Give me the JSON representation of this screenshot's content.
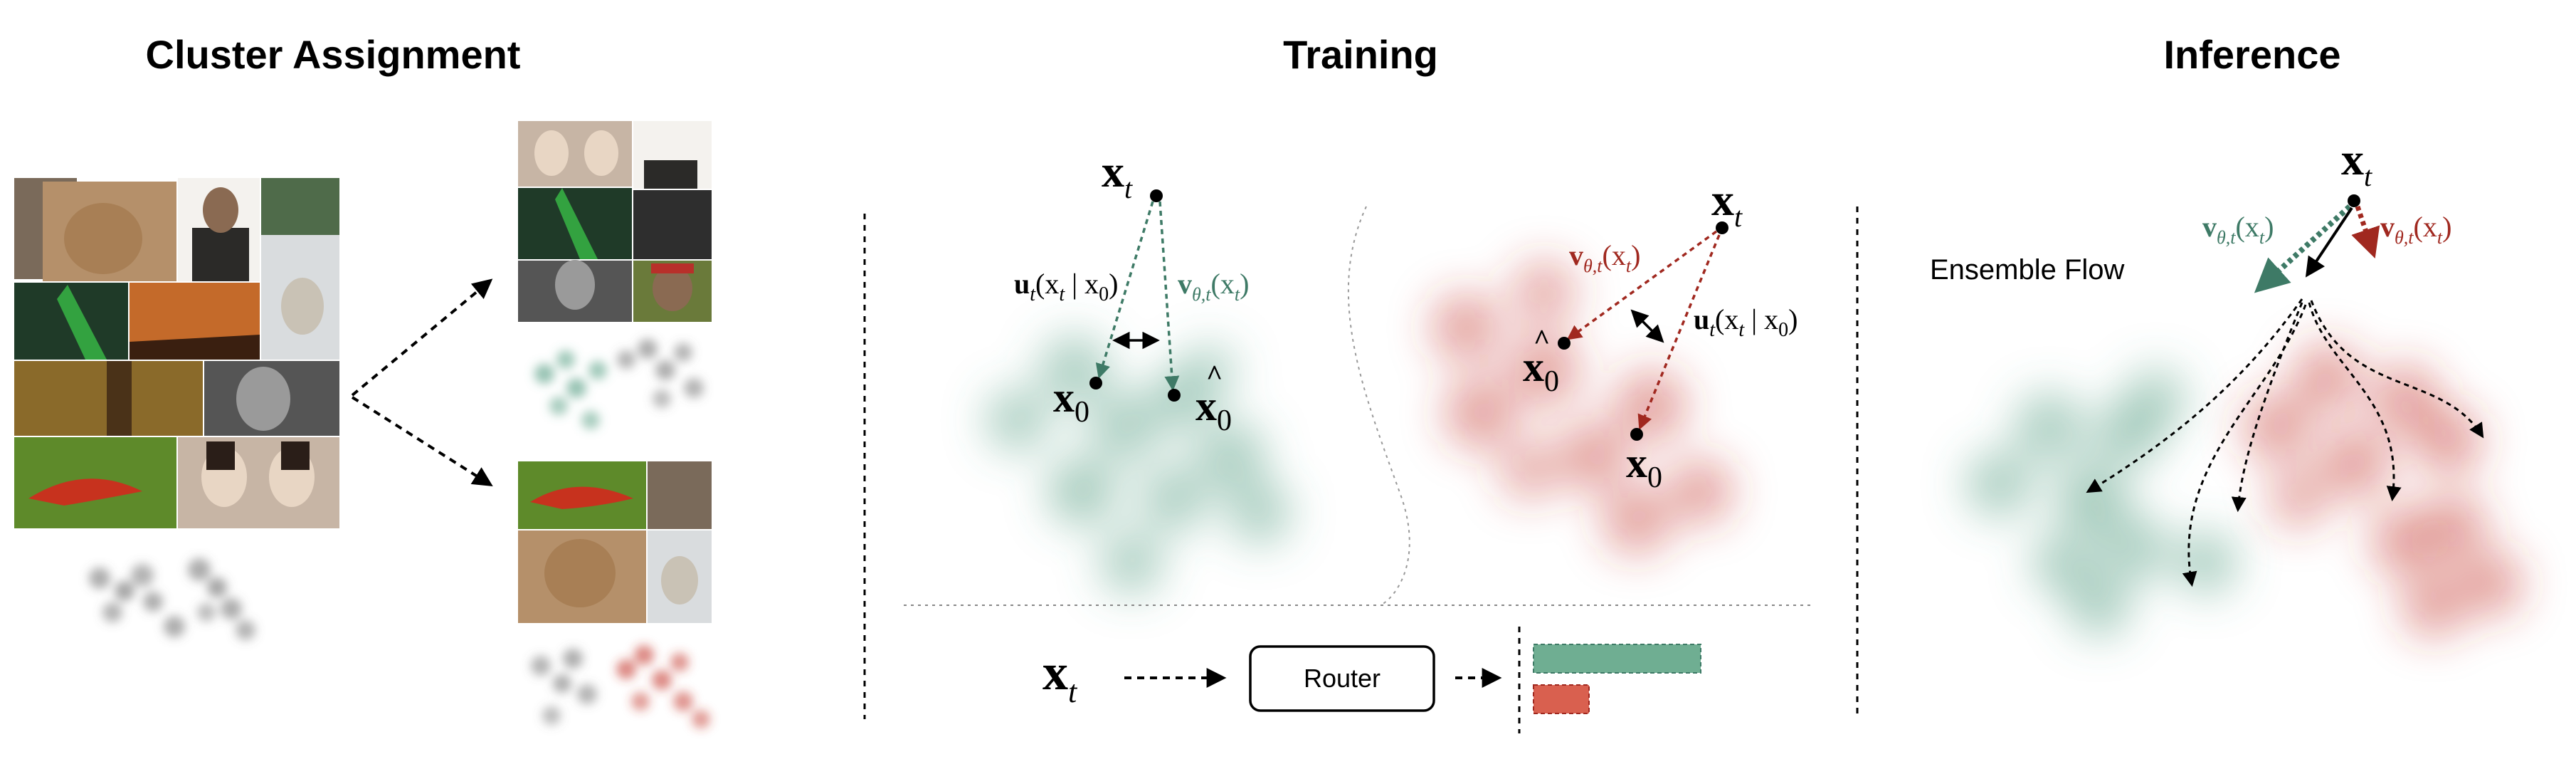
{
  "panels": {
    "cluster": {
      "title": "Cluster Assignment"
    },
    "training": {
      "title": "Training"
    },
    "inference": {
      "title": "Inference"
    }
  },
  "labels": {
    "x": "x",
    "t": "t",
    "zero": "0",
    "u": "u",
    "v": "v",
    "theta_t": "θ,t",
    "u_args": "(x",
    "u_args_mid": " | x",
    "close": ")",
    "v_args": "(x",
    "router": "Router",
    "ensemble_flow": "Ensemble Flow"
  },
  "colors": {
    "green": "#4e9a7e",
    "green_text": "#3e7a66",
    "red": "#c4382e",
    "red_text": "#a0281f",
    "bar_green": "#6fae92",
    "bar_red": "#d9604f",
    "gray_blob": "#6a6a6a"
  },
  "router_weights": {
    "green": 1.0,
    "red": 0.33
  },
  "images": [
    {
      "name": "bulldog-photo",
      "color": "#b5906a"
    },
    {
      "name": "man-portrait-photo",
      "color": "#3d3a36"
    },
    {
      "name": "forest-photo",
      "color": "#4f6b4a"
    },
    {
      "name": "green-hair-woman-photo",
      "color": "#2c4a33"
    },
    {
      "name": "sunset-tree-photo",
      "color": "#c46a2a"
    },
    {
      "name": "wolf-snow-photo",
      "color": "#d9dcde"
    },
    {
      "name": "autumn-trees-photo",
      "color": "#8a6a2a"
    },
    {
      "name": "bw-portrait-photo",
      "color": "#555555"
    },
    {
      "name": "red-lizard-photo",
      "color": "#5e8a2a"
    },
    {
      "name": "two-girls-photo",
      "color": "#c7b5a5"
    }
  ]
}
